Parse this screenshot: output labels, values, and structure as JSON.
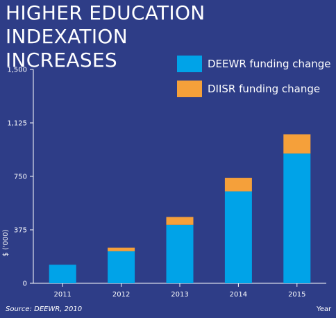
{
  "title_lines": [
    "HIGHER EDUCATION INDEXATION",
    "INCREASES"
  ],
  "source": "Source: DEEWR, 2010",
  "colors": {
    "background": "#2e3d87",
    "deewr": "#00a3e8",
    "diisr": "#f5a03a",
    "axis": "#ffffff"
  },
  "chart_data": {
    "type": "bar",
    "stacked": true,
    "categories": [
      "2011",
      "2012",
      "2013",
      "2014",
      "2015"
    ],
    "series": [
      {
        "name": "DEEWR funding change",
        "values": [
          130,
          225,
          410,
          645,
          910
        ]
      },
      {
        "name": "DIISR funding change",
        "values": [
          0,
          25,
          55,
          95,
          135
        ]
      }
    ],
    "yticks": [
      "0",
      "375",
      "750",
      "1,125",
      "1,500"
    ],
    "ylim": [
      0,
      1500
    ],
    "xlabel": "Year",
    "ylabel": "$ ('000)",
    "legend": "top-right"
  }
}
